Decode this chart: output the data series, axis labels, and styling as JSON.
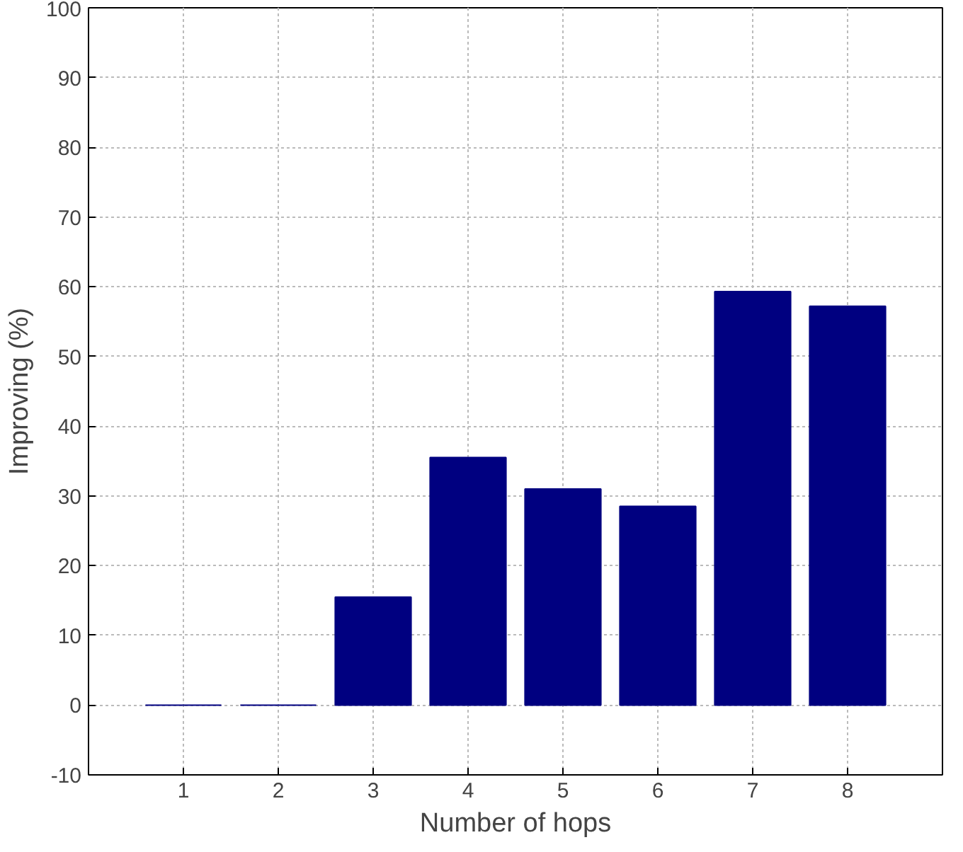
{
  "chart_data": {
    "type": "bar",
    "xlabel": "Number of hops",
    "ylabel": "Improving (%)",
    "x": [
      1,
      2,
      3,
      4,
      5,
      6,
      7,
      8
    ],
    "values": [
      0,
      0,
      15.5,
      35.5,
      31,
      28.5,
      59.3,
      57.2
    ],
    "color": "#000080",
    "xlim": [
      0,
      9
    ],
    "xticks": [
      1,
      2,
      3,
      4,
      5,
      6,
      7,
      8
    ],
    "ylim": [
      -10,
      100
    ],
    "yticks": [
      -10,
      0,
      10,
      20,
      30,
      40,
      50,
      60,
      70,
      80,
      90,
      100
    ],
    "grid": true
  }
}
